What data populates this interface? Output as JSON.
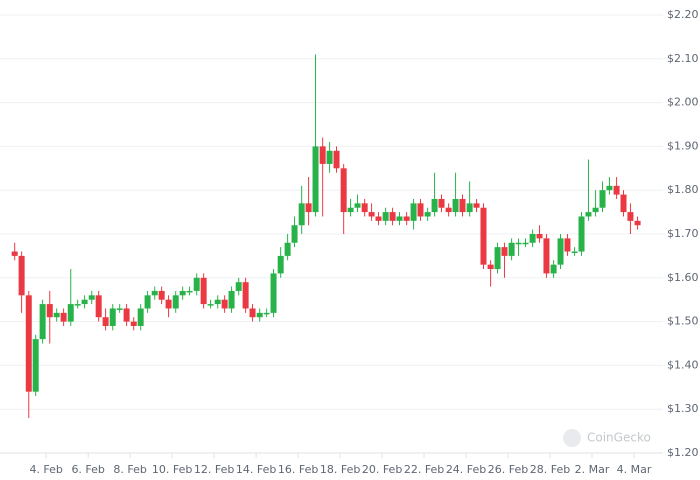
{
  "chart_data": {
    "type": "candlestick",
    "watermark": "CoinGecko",
    "up_color": "#28b34a",
    "down_color": "#ea3943",
    "grid": true,
    "xlim": [
      1.8,
      33
    ],
    "xticks": [
      {
        "value": 4,
        "label": "4. Feb"
      },
      {
        "value": 6,
        "label": "6. Feb"
      },
      {
        "value": 8,
        "label": "8. Feb"
      },
      {
        "value": 10,
        "label": "10. Feb"
      },
      {
        "value": 12,
        "label": "12. Feb"
      },
      {
        "value": 14,
        "label": "14. Feb"
      },
      {
        "value": 16,
        "label": "16. Feb"
      },
      {
        "value": 18,
        "label": "18. Feb"
      },
      {
        "value": 20,
        "label": "20. Feb"
      },
      {
        "value": 22,
        "label": "22. Feb"
      },
      {
        "value": 24,
        "label": "24. Feb"
      },
      {
        "value": 26,
        "label": "26. Feb"
      },
      {
        "value": 28,
        "label": "28. Feb"
      },
      {
        "value": 30,
        "label": "2. Mar"
      },
      {
        "value": 32,
        "label": "4. Mar"
      }
    ],
    "ylim": [
      1.2,
      2.2
    ],
    "yticks": [
      {
        "value": 1.2,
        "label": "$1.20"
      },
      {
        "value": 1.3,
        "label": "$1.30"
      },
      {
        "value": 1.4,
        "label": "$1.40"
      },
      {
        "value": 1.5,
        "label": "$1.50"
      },
      {
        "value": 1.6,
        "label": "$1.60"
      },
      {
        "value": 1.7,
        "label": "$1.70"
      },
      {
        "value": 1.8,
        "label": "$1.80"
      },
      {
        "value": 1.9,
        "label": "$1.90"
      },
      {
        "value": 2.0,
        "label": "$2.00"
      },
      {
        "value": 2.1,
        "label": "$2.10"
      },
      {
        "value": 2.2,
        "label": "$2.20"
      }
    ],
    "x": [
      2.5,
      2.83,
      3.17,
      3.5,
      3.83,
      4.17,
      4.5,
      4.83,
      5.17,
      5.5,
      5.83,
      6.17,
      6.5,
      6.83,
      7.17,
      7.5,
      7.83,
      8.17,
      8.5,
      8.83,
      9.17,
      9.5,
      9.83,
      10.17,
      10.5,
      10.83,
      11.17,
      11.5,
      11.83,
      12.17,
      12.5,
      12.83,
      13.17,
      13.5,
      13.83,
      14.17,
      14.5,
      14.83,
      15.17,
      15.5,
      15.83,
      16.17,
      16.5,
      16.83,
      17.17,
      17.5,
      17.83,
      18.17,
      18.5,
      18.83,
      19.17,
      19.5,
      19.83,
      20.17,
      20.5,
      20.83,
      21.17,
      21.5,
      21.83,
      22.17,
      22.5,
      22.83,
      23.17,
      23.5,
      23.83,
      24.17,
      24.5,
      24.83,
      25.17,
      25.5,
      25.83,
      26.17,
      26.5,
      26.83,
      27.17,
      27.5,
      27.83,
      28.17,
      28.5,
      28.83,
      29.17,
      29.5,
      29.83,
      30.17,
      30.5,
      30.83,
      31.17,
      31.5,
      31.83,
      32.17
    ],
    "open": [
      1.66,
      1.65,
      1.56,
      1.34,
      1.46,
      1.54,
      1.51,
      1.52,
      1.5,
      1.54,
      1.54,
      1.55,
      1.56,
      1.51,
      1.49,
      1.53,
      1.53,
      1.5,
      1.49,
      1.53,
      1.56,
      1.57,
      1.55,
      1.53,
      1.56,
      1.57,
      1.57,
      1.6,
      1.54,
      1.54,
      1.55,
      1.53,
      1.57,
      1.59,
      1.53,
      1.51,
      1.52,
      1.52,
      1.61,
      1.65,
      1.68,
      1.72,
      1.77,
      1.75,
      1.9,
      1.86,
      1.89,
      1.85,
      1.75,
      1.76,
      1.77,
      1.75,
      1.74,
      1.73,
      1.75,
      1.73,
      1.74,
      1.73,
      1.77,
      1.74,
      1.75,
      1.78,
      1.76,
      1.75,
      1.78,
      1.75,
      1.77,
      1.76,
      1.63,
      1.62,
      1.67,
      1.65,
      1.68,
      1.68,
      1.68,
      1.7,
      1.69,
      1.61,
      1.63,
      1.69,
      1.66,
      1.66,
      1.74,
      1.75,
      1.76,
      1.8,
      1.81,
      1.79,
      1.75,
      1.73
    ],
    "high": [
      1.68,
      1.66,
      1.57,
      1.47,
      1.55,
      1.57,
      1.53,
      1.53,
      1.62,
      1.55,
      1.56,
      1.57,
      1.57,
      1.53,
      1.54,
      1.54,
      1.54,
      1.51,
      1.54,
      1.57,
      1.58,
      1.58,
      1.56,
      1.57,
      1.58,
      1.58,
      1.61,
      1.61,
      1.55,
      1.56,
      1.56,
      1.58,
      1.6,
      1.6,
      1.54,
      1.53,
      1.53,
      1.62,
      1.67,
      1.7,
      1.74,
      1.81,
      1.83,
      2.11,
      1.92,
      1.91,
      1.9,
      1.86,
      1.78,
      1.79,
      1.78,
      1.77,
      1.75,
      1.76,
      1.76,
      1.75,
      1.75,
      1.78,
      1.78,
      1.76,
      1.84,
      1.79,
      1.77,
      1.84,
      1.79,
      1.82,
      1.78,
      1.77,
      1.64,
      1.68,
      1.68,
      1.69,
      1.69,
      1.69,
      1.71,
      1.72,
      1.7,
      1.64,
      1.7,
      1.7,
      1.67,
      1.75,
      1.87,
      1.8,
      1.82,
      1.83,
      1.83,
      1.8,
      1.77,
      1.74
    ],
    "low": [
      1.64,
      1.52,
      1.28,
      1.33,
      1.45,
      1.45,
      1.5,
      1.49,
      1.49,
      1.53,
      1.53,
      1.54,
      1.5,
      1.48,
      1.48,
      1.52,
      1.49,
      1.48,
      1.48,
      1.52,
      1.55,
      1.54,
      1.51,
      1.52,
      1.55,
      1.56,
      1.56,
      1.53,
      1.53,
      1.53,
      1.52,
      1.52,
      1.56,
      1.52,
      1.5,
      1.5,
      1.51,
      1.51,
      1.6,
      1.64,
      1.67,
      1.7,
      1.72,
      1.74,
      1.74,
      1.84,
      1.84,
      1.7,
      1.74,
      1.75,
      1.74,
      1.73,
      1.72,
      1.72,
      1.72,
      1.72,
      1.72,
      1.71,
      1.73,
      1.73,
      1.74,
      1.75,
      1.74,
      1.74,
      1.74,
      1.74,
      1.75,
      1.62,
      1.58,
      1.61,
      1.6,
      1.64,
      1.65,
      1.67,
      1.67,
      1.68,
      1.6,
      1.6,
      1.62,
      1.65,
      1.65,
      1.65,
      1.73,
      1.74,
      1.75,
      1.79,
      1.78,
      1.74,
      1.7,
      1.71
    ],
    "close": [
      1.65,
      1.56,
      1.34,
      1.46,
      1.54,
      1.51,
      1.52,
      1.5,
      1.54,
      1.54,
      1.55,
      1.56,
      1.51,
      1.49,
      1.53,
      1.53,
      1.5,
      1.49,
      1.53,
      1.56,
      1.57,
      1.55,
      1.53,
      1.56,
      1.57,
      1.57,
      1.6,
      1.54,
      1.54,
      1.55,
      1.53,
      1.57,
      1.59,
      1.53,
      1.51,
      1.52,
      1.52,
      1.61,
      1.65,
      1.68,
      1.72,
      1.77,
      1.75,
      1.9,
      1.86,
      1.89,
      1.85,
      1.75,
      1.76,
      1.77,
      1.75,
      1.74,
      1.73,
      1.75,
      1.73,
      1.74,
      1.73,
      1.77,
      1.74,
      1.75,
      1.78,
      1.76,
      1.75,
      1.78,
      1.75,
      1.77,
      1.76,
      1.63,
      1.62,
      1.67,
      1.65,
      1.68,
      1.68,
      1.68,
      1.7,
      1.69,
      1.61,
      1.63,
      1.69,
      1.66,
      1.66,
      1.74,
      1.75,
      1.76,
      1.8,
      1.81,
      1.79,
      1.75,
      1.73,
      1.72
    ]
  }
}
